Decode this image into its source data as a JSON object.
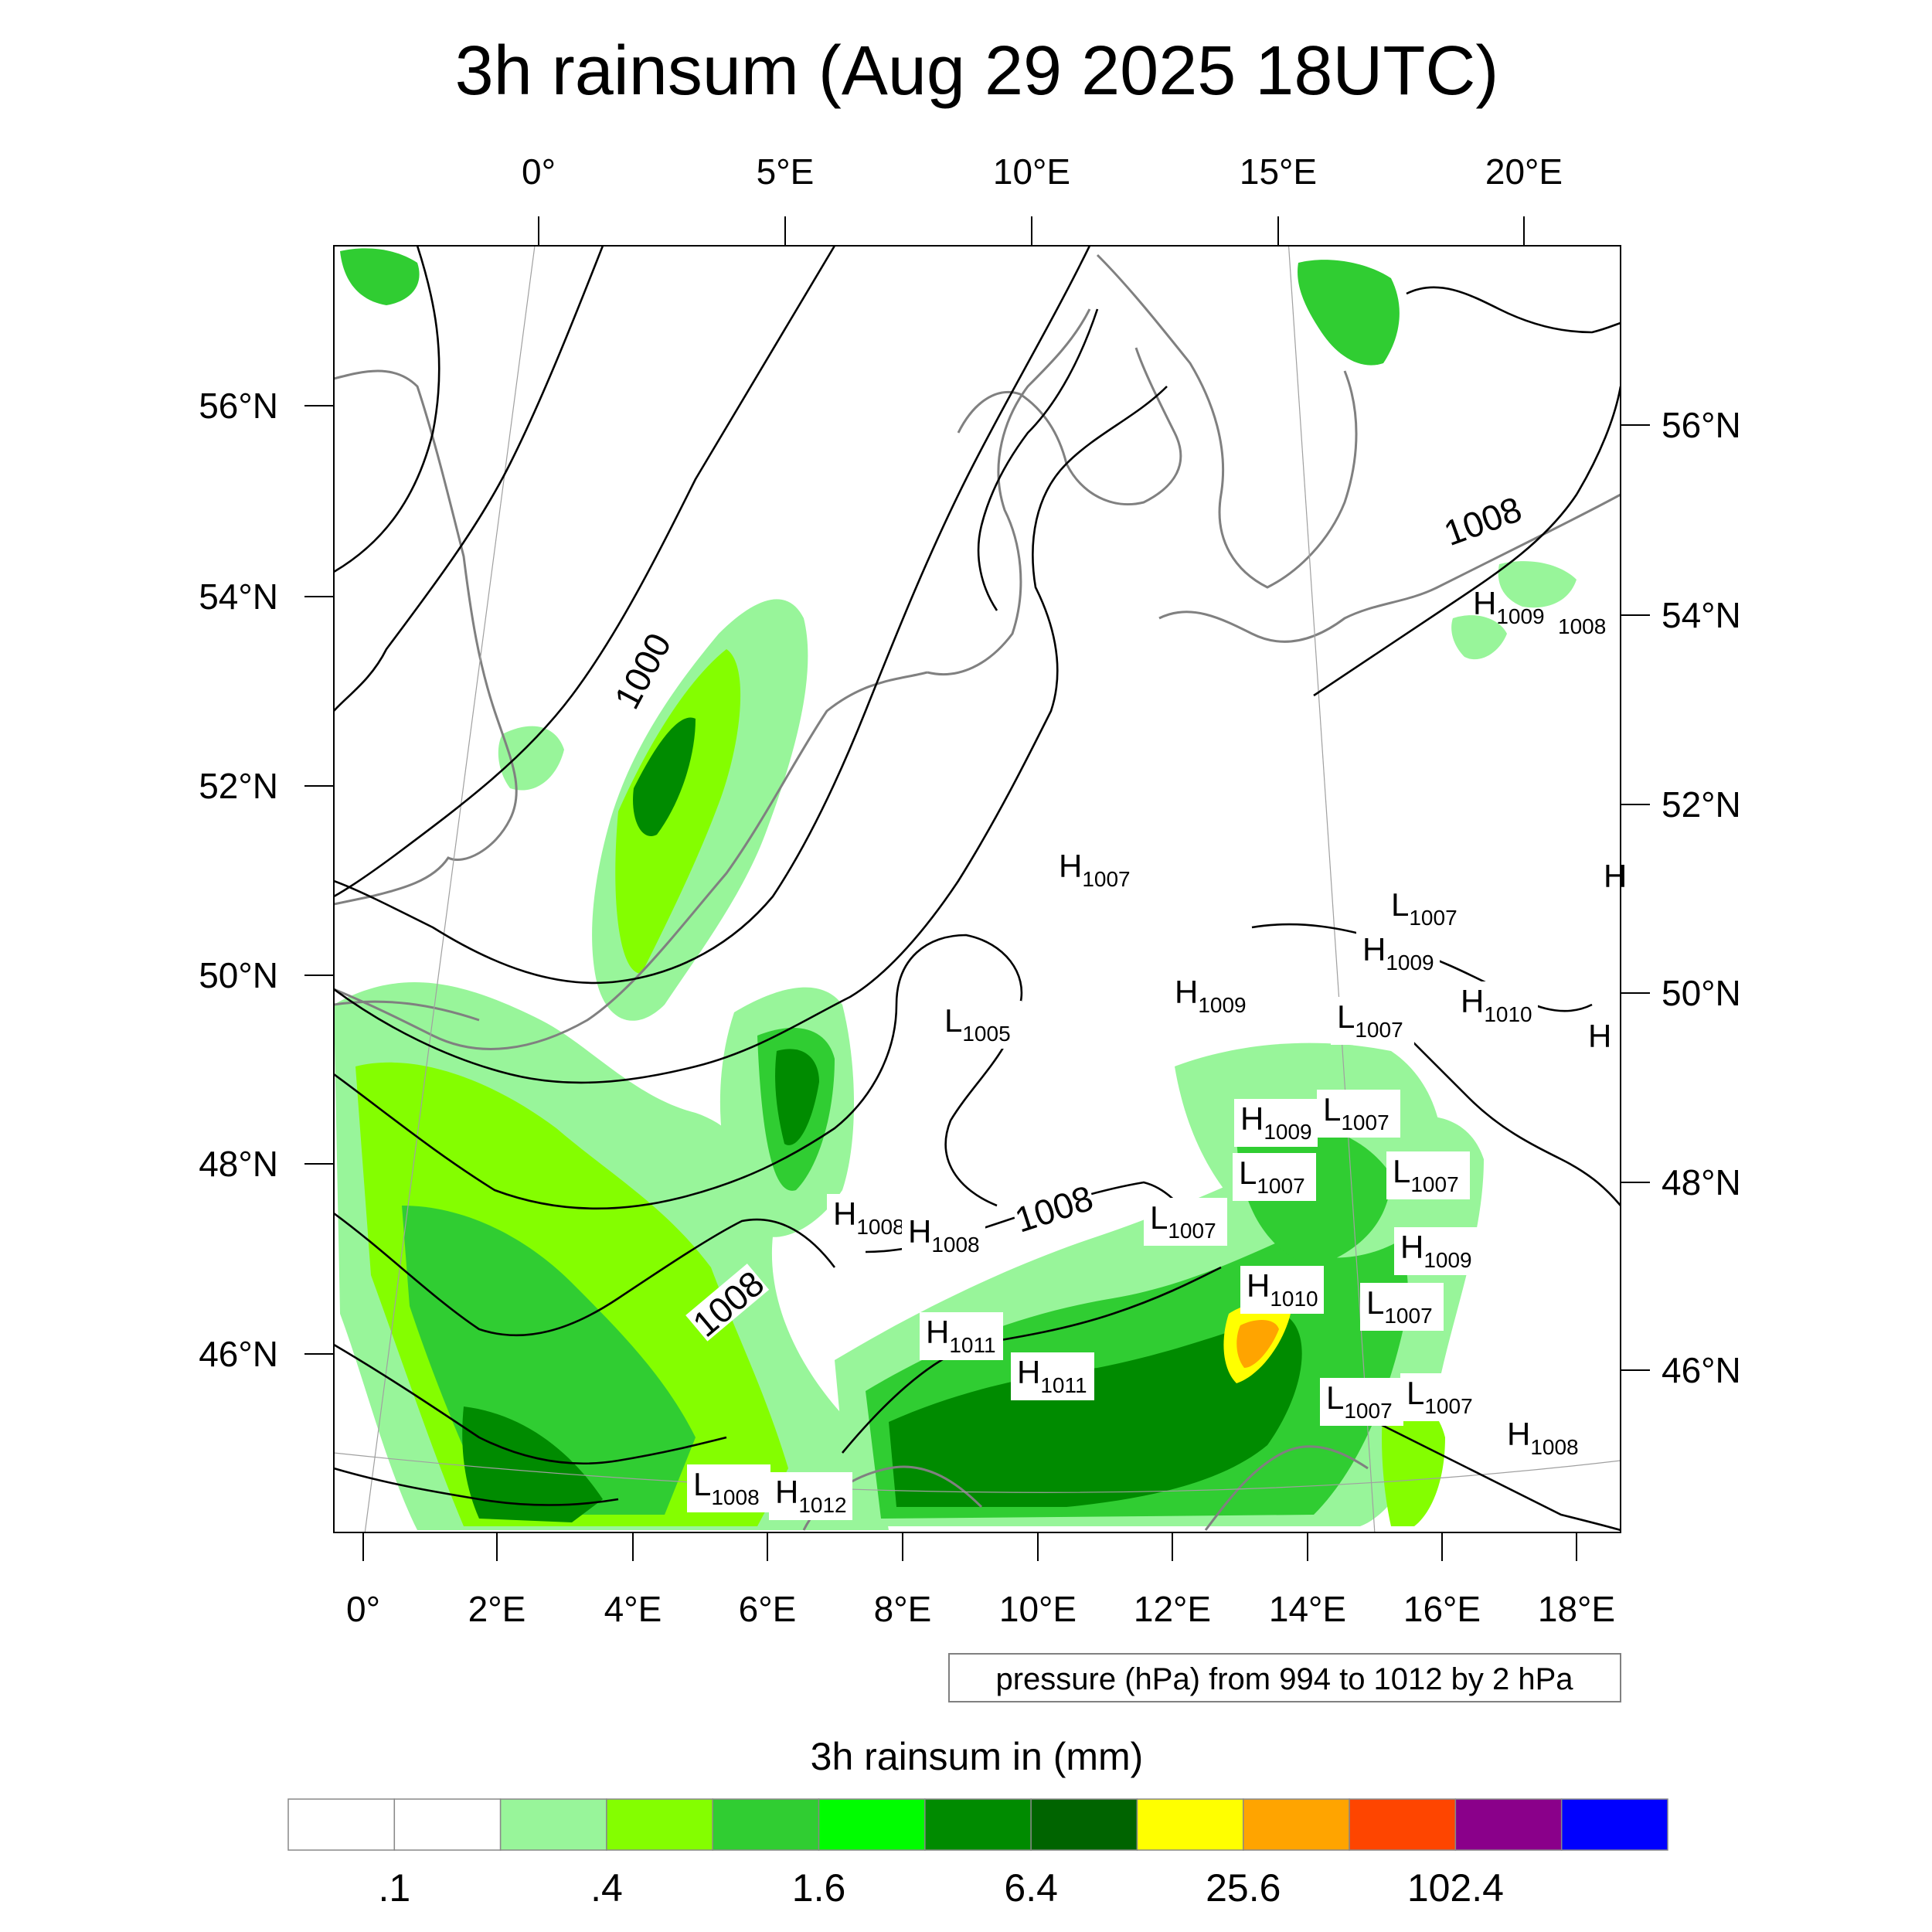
{
  "title": "3h rainsum (Aug 29 2025 18UTC)",
  "top_lon_labels": [
    "0°",
    "5°E",
    "10°E",
    "15°E",
    "20°E"
  ],
  "bottom_lon_labels": [
    "0°",
    "2°E",
    "4°E",
    "6°E",
    "8°E",
    "10°E",
    "12°E",
    "14°E",
    "16°E",
    "18°E"
  ],
  "left_lat_labels": [
    "56°N",
    "54°N",
    "52°N",
    "50°N",
    "48°N",
    "46°N"
  ],
  "right_lat_labels": [
    "56°N",
    "54°N",
    "52°N",
    "50°N",
    "48°N",
    "46°N"
  ],
  "contour_info": "pressure (hPa) from 994 to 1012 by 2 hPa",
  "contour_labels": [
    "1000",
    "1008",
    "1008",
    "1008"
  ],
  "pressure_centers": [
    {
      "t": "H",
      "v": "1007"
    },
    {
      "t": "L",
      "v": "1005"
    },
    {
      "t": "H",
      "v": "1009"
    },
    {
      "t": "L",
      "v": "1007"
    },
    {
      "t": "H",
      "v": "1009"
    },
    {
      "t": "L",
      "v": "1007"
    },
    {
      "t": "H",
      "v": "1010"
    },
    {
      "t": "H",
      "v": "1009"
    },
    {
      "t": "L",
      "v": "1007"
    },
    {
      "t": "L",
      "v": "1007"
    },
    {
      "t": "L",
      "v": "1007"
    },
    {
      "t": "L",
      "v": "1007"
    },
    {
      "t": "H",
      "v": "1009"
    },
    {
      "t": "H",
      "v": "1010"
    },
    {
      "t": "L",
      "v": "1007"
    },
    {
      "t": "H",
      "v": "1008"
    },
    {
      "t": "H",
      "v": "1008"
    },
    {
      "t": "H",
      "v": "1011"
    },
    {
      "t": "H",
      "v": "1011"
    },
    {
      "t": "L",
      "v": "1008"
    },
    {
      "t": "H",
      "v": "1012"
    },
    {
      "t": "L",
      "v": "1007"
    },
    {
      "t": "L",
      "v": "1007"
    },
    {
      "t": "H",
      "v": "1008"
    },
    {
      "t": "H",
      "v": "1009"
    },
    {
      "t": "",
      "v": "1008"
    },
    {
      "t": "H",
      "v": ""
    },
    {
      "t": "H",
      "v": ""
    }
  ],
  "colorbar": {
    "title": "3h rainsum in (mm)",
    "colors": [
      "#ffffff",
      "#ffffff",
      "#98f59a",
      "#84fe00",
      "#30cd32",
      "#00fd00",
      "#008b00",
      "#006400",
      "#ffff00",
      "#ffa400",
      "#fe4500",
      "#8a008a",
      "#0000fe"
    ],
    "labels": [
      ".1",
      ".4",
      "1.6",
      "6.4",
      "25.6",
      "102.4"
    ]
  },
  "rain_colors": {
    "light": "#98f59a",
    "yellowgreen": "#84fe00",
    "medium": "#30cd32",
    "bright": "#00fd00",
    "dark": "#008b00",
    "darkest": "#006400",
    "yellow": "#ffff00",
    "orange": "#ffa400"
  },
  "coast_color": "#808080",
  "isobar_color": "#000000"
}
